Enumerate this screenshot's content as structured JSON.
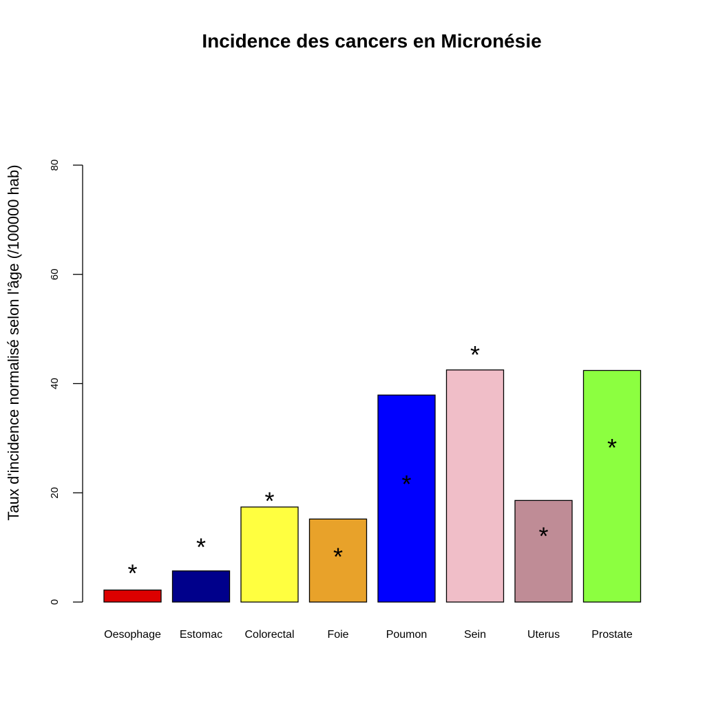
{
  "chart_data": {
    "type": "bar",
    "title": "Incidence des cancers en Micronésie",
    "xlabel": "",
    "ylabel": "Taux d'incidence normalisé selon l'âge (/100000 hab)",
    "ylim": [
      0,
      80
    ],
    "yticks": [
      "0",
      "20",
      "40",
      "60",
      "80"
    ],
    "grid": false,
    "categories": [
      "Oesophage",
      "Estomac",
      "Colorectal",
      "Foie",
      "Poumon",
      "Sein",
      "Uterus",
      "Prostate"
    ],
    "values": [
      2.2,
      5.7,
      17.4,
      15.2,
      37.9,
      42.5,
      18.6,
      42.4
    ],
    "colors": [
      "#dd0000",
      "#00008b",
      "#ffff40",
      "#e8a22a",
      "#0000ff",
      "#f0bec8",
      "#bf8c96",
      "#8cff40"
    ],
    "annotations": [
      {
        "text": "*",
        "y": 6.0
      },
      {
        "text": "*",
        "y": 10.8
      },
      {
        "text": "*",
        "y": 19.2
      },
      {
        "text": "*",
        "y": 9.0
      },
      {
        "text": "*",
        "y": 22.3
      },
      {
        "text": "*",
        "y": 46.0
      },
      {
        "text": "*",
        "y": 12.8
      },
      {
        "text": "*",
        "y": 29.0
      }
    ]
  }
}
